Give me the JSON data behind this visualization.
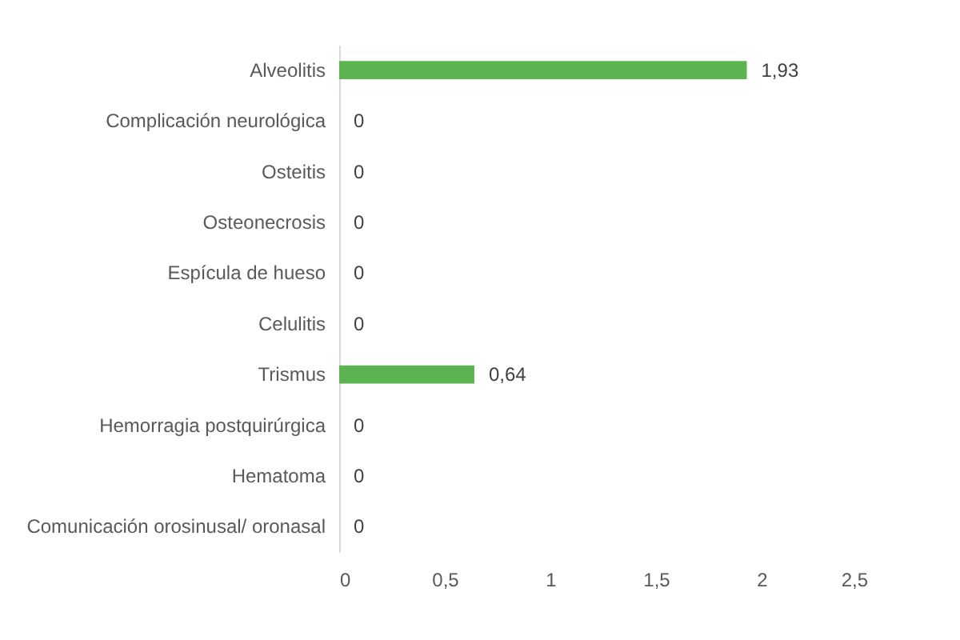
{
  "chart_data": {
    "type": "bar",
    "orientation": "horizontal",
    "categories": [
      "Alveolitis",
      "Complicación neurológica",
      "Osteitis",
      "Osteonecrosis",
      "Espícula de hueso",
      "Celulitis",
      "Trismus",
      "Hemorragia postquirúrgica",
      "Hematoma",
      "Comunicación orosinusal/ oronasal"
    ],
    "values": [
      1.93,
      0,
      0,
      0,
      0,
      0,
      0.64,
      0,
      0,
      0
    ],
    "value_labels": [
      "1,93",
      "0",
      "0",
      "0",
      "0",
      "0",
      "0,64",
      "0",
      "0",
      "0"
    ],
    "color": "#5bb450",
    "xlim": [
      0,
      2.5
    ],
    "xticks": [
      0,
      {
        "value": 0.5,
        "label": "0,5"
      },
      1,
      {
        "value": 1.5,
        "label": "1,5"
      },
      2,
      {
        "value": 2.5,
        "label": "2,5"
      }
    ]
  }
}
